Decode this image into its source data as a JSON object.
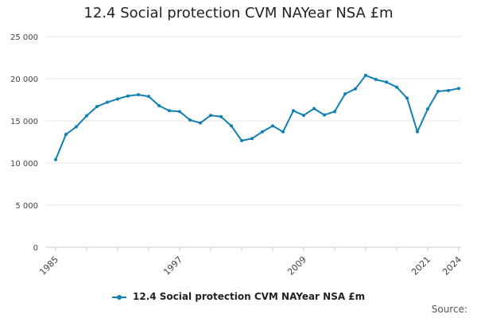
{
  "chart_data": {
    "type": "line",
    "title": "12.4 Social protection CVM NAYear NSA £m",
    "xlabel": "",
    "ylabel": "",
    "ylim": [
      0,
      25000
    ],
    "yticks": [
      0,
      5000,
      10000,
      15000,
      20000,
      25000
    ],
    "ytick_labels": [
      "0",
      "5 000",
      "10 000",
      "15 000",
      "20 000",
      "25 000"
    ],
    "xlim": [
      1985,
      2024
    ],
    "xtick_labels": [
      "1985",
      "1997",
      "2009",
      "2021",
      "2024"
    ],
    "x": [
      1985,
      1986,
      1987,
      1988,
      1989,
      1990,
      1991,
      1992,
      1993,
      1994,
      1995,
      1996,
      1997,
      1998,
      1999,
      2000,
      2001,
      2002,
      2003,
      2004,
      2005,
      2006,
      2007,
      2008,
      2009,
      2010,
      2011,
      2012,
      2013,
      2014,
      2015,
      2016,
      2017,
      2018,
      2019,
      2020,
      2021,
      2022,
      2023,
      2024
    ],
    "series": [
      {
        "name": "12.4 Social protection CVM NAYear NSA £m",
        "color": "#0f7fb4",
        "values": [
          10400,
          13400,
          14300,
          15600,
          16700,
          17200,
          17600,
          17950,
          18100,
          17900,
          16800,
          16200,
          16100,
          15100,
          14750,
          15650,
          15500,
          14400,
          12650,
          12900,
          13700,
          14400,
          13700,
          16200,
          15650,
          16450,
          15700,
          16100,
          18200,
          18800,
          20400,
          19900,
          19600,
          19000,
          17700,
          13700,
          16400,
          18500,
          18600,
          18850
        ]
      }
    ],
    "legend": {
      "position": "bottom-center",
      "label": "12.4 Social protection CVM NAYear NSA £m"
    },
    "source_label": "Source:"
  }
}
